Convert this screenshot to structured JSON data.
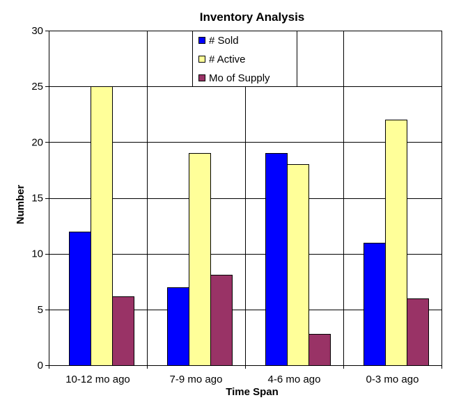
{
  "chart_data": {
    "type": "bar",
    "title": "Inventory Analysis",
    "xlabel": "Time Span",
    "ylabel": "Number",
    "categories": [
      "10-12 mo ago",
      "7-9 mo ago",
      "4-6 mo ago",
      "0-3 mo ago"
    ],
    "series": [
      {
        "name": "# Sold",
        "values": [
          12,
          7,
          19,
          11
        ],
        "color": "#0000FF"
      },
      {
        "name": "# Active",
        "values": [
          25,
          19,
          18,
          22
        ],
        "color": "#FFFF99"
      },
      {
        "name": "Mo of Supply",
        "values": [
          6.2,
          8.1,
          2.8,
          6.0
        ],
        "color": "#993366"
      }
    ],
    "ylim": [
      0,
      30
    ],
    "yticks": [
      "0",
      "5",
      "10",
      "15",
      "20",
      "25",
      "30"
    ],
    "grid": true,
    "legend_position": "top-center"
  }
}
